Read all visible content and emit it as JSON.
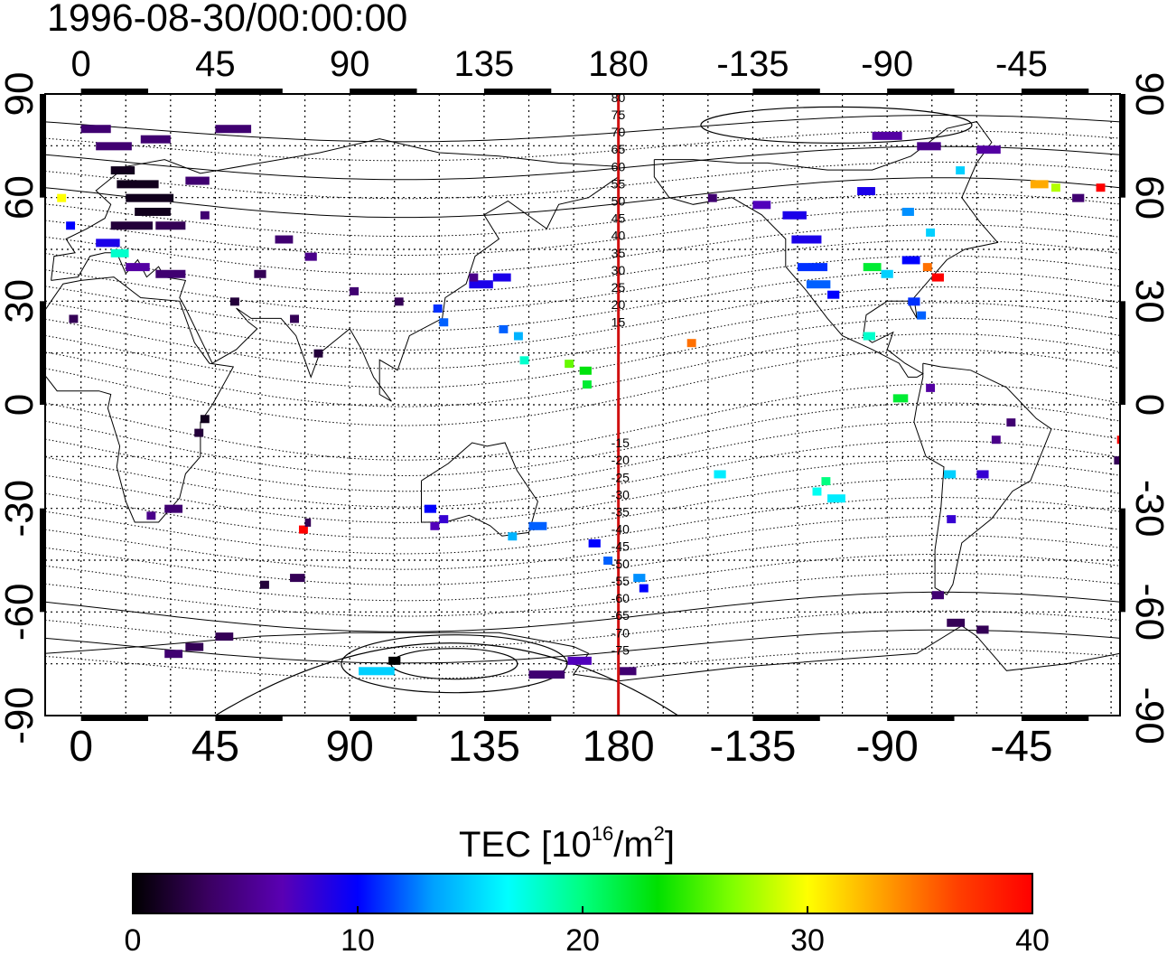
{
  "timestamp": "1996-08-30/00:00:00",
  "top_axis_ticks": [
    "0",
    "45",
    "90",
    "135",
    "180",
    "-135",
    "-90",
    "-45"
  ],
  "bottom_axis_ticks": [
    "0",
    "45",
    "90",
    "135",
    "180",
    "-135",
    "-90",
    "-45"
  ],
  "left_axis_ticks": [
    "90",
    "60",
    "30",
    "0",
    "-30",
    "-60",
    "-90"
  ],
  "right_axis_ticks": [
    "90",
    "60",
    "30",
    "0",
    "-30",
    "-60",
    "-90"
  ],
  "dateline_labels_north": [
    "80",
    "75",
    "70",
    "65",
    "60",
    "55",
    "50",
    "45",
    "40",
    "35",
    "30",
    "25",
    "20",
    "15"
  ],
  "dateline_labels_south": [
    "15",
    "20",
    "25",
    "30",
    "35",
    "40",
    "45",
    "50",
    "55",
    "60",
    "65",
    "70",
    "75"
  ],
  "colorbar": {
    "title_prefix": "TEC  [10",
    "title_sup1": "16",
    "title_mid": "/m",
    "title_sup2": "2",
    "title_suffix": "]",
    "ticks": [
      "0",
      "10",
      "20",
      "30",
      "40"
    ],
    "stops": [
      "#000000",
      "#3a0060",
      "#5a00b4",
      "#0000ff",
      "#00a0ff",
      "#00ffff",
      "#00ff80",
      "#00e000",
      "#80ff00",
      "#ffff00",
      "#ffa000",
      "#ff4000",
      "#ff0000"
    ]
  },
  "colors": {
    "dateline": "#d01010",
    "grid": "#000000"
  },
  "map_data": {
    "projection": "equirectangular",
    "lon_range_east": [
      -12,
      348
    ],
    "lat_range": [
      -90,
      90
    ],
    "grid_step_deg": 15,
    "value_range": [
      0,
      40
    ],
    "tec_cells": [
      {
        "lon": 0,
        "lat": 80,
        "w": 10,
        "v": 4
      },
      {
        "lon": 45,
        "lat": 80,
        "w": 12,
        "v": 4
      },
      {
        "lon": 5,
        "lat": 75,
        "w": 12,
        "v": 4
      },
      {
        "lon": 20,
        "lat": 77,
        "w": 10,
        "v": 4
      },
      {
        "lon": 10,
        "lat": 68,
        "w": 8,
        "v": 1
      },
      {
        "lon": 12,
        "lat": 64,
        "w": 14,
        "v": 1
      },
      {
        "lon": 15,
        "lat": 60,
        "w": 16,
        "v": 1
      },
      {
        "lon": 18,
        "lat": 56,
        "w": 12,
        "v": 1
      },
      {
        "lon": 10,
        "lat": 52,
        "w": 14,
        "v": 2
      },
      {
        "lon": 25,
        "lat": 52,
        "w": 10,
        "v": 3
      },
      {
        "lon": 5,
        "lat": 47,
        "w": 8,
        "v": 9
      },
      {
        "lon": 10,
        "lat": 44,
        "w": 6,
        "v": 18
      },
      {
        "lon": 15,
        "lat": 40,
        "w": 8,
        "v": 6
      },
      {
        "lon": 25,
        "lat": 38,
        "w": 10,
        "v": 4
      },
      {
        "lon": -8,
        "lat": 60,
        "w": 3,
        "v": 30
      },
      {
        "lon": -5,
        "lat": 52,
        "w": 3,
        "v": 10
      },
      {
        "lon": 35,
        "lat": 65,
        "w": 8,
        "v": 4
      },
      {
        "lon": 40,
        "lat": 55,
        "w": 3,
        "v": 4
      },
      {
        "lon": 65,
        "lat": 48,
        "w": 6,
        "v": 4
      },
      {
        "lon": 75,
        "lat": 43,
        "w": 4,
        "v": 5
      },
      {
        "lon": 58,
        "lat": 38,
        "w": 4,
        "v": 3
      },
      {
        "lon": 50,
        "lat": 30,
        "w": 3,
        "v": 2
      },
      {
        "lon": 70,
        "lat": 25,
        "w": 3,
        "v": 3
      },
      {
        "lon": 78,
        "lat": 15,
        "w": 3,
        "v": 2
      },
      {
        "lon": -4,
        "lat": 25,
        "w": 3,
        "v": 3
      },
      {
        "lon": -14,
        "lat": -16,
        "w": 3,
        "v": 3
      },
      {
        "lon": -13,
        "lat": -10,
        "w": 3,
        "v": 40
      },
      {
        "lon": 40,
        "lat": -4,
        "w": 3,
        "v": 1
      },
      {
        "lon": 38,
        "lat": -8,
        "w": 3,
        "v": 2
      },
      {
        "lon": 28,
        "lat": -30,
        "w": 6,
        "v": 4
      },
      {
        "lon": 22,
        "lat": -32,
        "w": 3,
        "v": 5
      },
      {
        "lon": 73,
        "lat": -36,
        "w": 3,
        "v": 40
      },
      {
        "lon": 75,
        "lat": -34,
        "w": 2,
        "v": 3
      },
      {
        "lon": 70,
        "lat": -50,
        "w": 5,
        "v": 3
      },
      {
        "lon": 60,
        "lat": -52,
        "w": 3,
        "v": 2
      },
      {
        "lon": 35,
        "lat": -70,
        "w": 6,
        "v": 3
      },
      {
        "lon": 45,
        "lat": -67,
        "w": 6,
        "v": 3
      },
      {
        "lon": 28,
        "lat": -72,
        "w": 6,
        "v": 4
      },
      {
        "lon": 93,
        "lat": -77,
        "w": 12,
        "v": 15
      },
      {
        "lon": 103,
        "lat": -74,
        "w": 4,
        "v": 0
      },
      {
        "lon": 150,
        "lat": -78,
        "w": 12,
        "v": 4
      },
      {
        "lon": 163,
        "lat": -74,
        "w": 8,
        "v": 7
      },
      {
        "lon": 180,
        "lat": -77,
        "w": 6,
        "v": 4
      },
      {
        "lon": 90,
        "lat": 33,
        "w": 3,
        "v": 4
      },
      {
        "lon": 105,
        "lat": 30,
        "w": 3,
        "v": 3
      },
      {
        "lon": 118,
        "lat": 28,
        "w": 3,
        "v": 11
      },
      {
        "lon": 120,
        "lat": 24,
        "w": 3,
        "v": 12
      },
      {
        "lon": 130,
        "lat": 35,
        "w": 8,
        "v": 9
      },
      {
        "lon": 138,
        "lat": 37,
        "w": 6,
        "v": 9
      },
      {
        "lon": 140,
        "lat": 22,
        "w": 3,
        "v": 12
      },
      {
        "lon": 145,
        "lat": 20,
        "w": 3,
        "v": 14
      },
      {
        "lon": 147,
        "lat": 13,
        "w": 3,
        "v": 18
      },
      {
        "lon": 162,
        "lat": 12,
        "w": 3,
        "v": 26
      },
      {
        "lon": 167,
        "lat": 10,
        "w": 4,
        "v": 23
      },
      {
        "lon": 168,
        "lat": 6,
        "w": 3,
        "v": 22
      },
      {
        "lon": 130,
        "lat": 37,
        "w": 3,
        "v": 5
      },
      {
        "lon": 115,
        "lat": -30,
        "w": 4,
        "v": 10
      },
      {
        "lon": 117,
        "lat": -35,
        "w": 3,
        "v": 7
      },
      {
        "lon": 120,
        "lat": -33,
        "w": 3,
        "v": 8
      },
      {
        "lon": 150,
        "lat": -35,
        "w": 6,
        "v": 12
      },
      {
        "lon": 143,
        "lat": -38,
        "w": 3,
        "v": 14
      },
      {
        "lon": 170,
        "lat": -40,
        "w": 4,
        "v": 10
      },
      {
        "lon": 175,
        "lat": -45,
        "w": 3,
        "v": 12
      },
      {
        "lon": 185,
        "lat": -50,
        "w": 4,
        "v": 13
      },
      {
        "lon": 187,
        "lat": -53,
        "w": 3,
        "v": 10
      },
      {
        "lon": 203,
        "lat": 18,
        "w": 3,
        "v": 35
      },
      {
        "lon": 212,
        "lat": -20,
        "w": 4,
        "v": 16
      },
      {
        "lon": 245,
        "lat": -25,
        "w": 3,
        "v": 17
      },
      {
        "lon": 248,
        "lat": -22,
        "w": 3,
        "v": 20
      },
      {
        "lon": 250,
        "lat": -27,
        "w": 6,
        "v": 16
      },
      {
        "lon": 210,
        "lat": 60,
        "w": 3,
        "v": 4
      },
      {
        "lon": 225,
        "lat": 58,
        "w": 6,
        "v": 7
      },
      {
        "lon": 235,
        "lat": 55,
        "w": 8,
        "v": 9
      },
      {
        "lon": 238,
        "lat": 48,
        "w": 10,
        "v": 9
      },
      {
        "lon": 240,
        "lat": 40,
        "w": 10,
        "v": 11
      },
      {
        "lon": 243,
        "lat": 35,
        "w": 8,
        "v": 12
      },
      {
        "lon": 250,
        "lat": 32,
        "w": 4,
        "v": 10
      },
      {
        "lon": 262,
        "lat": 40,
        "w": 6,
        "v": 22
      },
      {
        "lon": 268,
        "lat": 38,
        "w": 4,
        "v": 15
      },
      {
        "lon": 275,
        "lat": 42,
        "w": 6,
        "v": 10
      },
      {
        "lon": 282,
        "lat": 40,
        "w": 3,
        "v": 35
      },
      {
        "lon": 285,
        "lat": 37,
        "w": 4,
        "v": 40
      },
      {
        "lon": 277,
        "lat": 30,
        "w": 4,
        "v": 11
      },
      {
        "lon": 280,
        "lat": 26,
        "w": 3,
        "v": 12
      },
      {
        "lon": 262,
        "lat": 20,
        "w": 4,
        "v": 18
      },
      {
        "lon": 272,
        "lat": 2,
        "w": 5,
        "v": 22
      },
      {
        "lon": 283,
        "lat": 5,
        "w": 3,
        "v": 6
      },
      {
        "lon": 289,
        "lat": -20,
        "w": 4,
        "v": 15
      },
      {
        "lon": 300,
        "lat": -20,
        "w": 4,
        "v": 8
      },
      {
        "lon": 290,
        "lat": -33,
        "w": 3,
        "v": 8
      },
      {
        "lon": 305,
        "lat": -10,
        "w": 3,
        "v": 5
      },
      {
        "lon": 310,
        "lat": -5,
        "w": 3,
        "v": 4
      },
      {
        "lon": 285,
        "lat": -55,
        "w": 4,
        "v": 4
      },
      {
        "lon": 290,
        "lat": -63,
        "w": 6,
        "v": 3
      },
      {
        "lon": 300,
        "lat": -65,
        "w": 4,
        "v": 3
      },
      {
        "lon": 265,
        "lat": 78,
        "w": 10,
        "v": 6
      },
      {
        "lon": 280,
        "lat": 75,
        "w": 8,
        "v": 5
      },
      {
        "lon": 300,
        "lat": 74,
        "w": 8,
        "v": 6
      },
      {
        "lon": 293,
        "lat": 68,
        "w": 3,
        "v": 15
      },
      {
        "lon": 318,
        "lat": 64,
        "w": 6,
        "v": 33
      },
      {
        "lon": 325,
        "lat": 63,
        "w": 3,
        "v": 28
      },
      {
        "lon": 340,
        "lat": 63,
        "w": 3,
        "v": 40
      },
      {
        "lon": 332,
        "lat": 60,
        "w": 4,
        "v": 4
      },
      {
        "lon": 260,
        "lat": 62,
        "w": 6,
        "v": 9
      },
      {
        "lon": 275,
        "lat": 56,
        "w": 4,
        "v": 13
      },
      {
        "lon": 283,
        "lat": 50,
        "w": 3,
        "v": 15
      }
    ]
  }
}
